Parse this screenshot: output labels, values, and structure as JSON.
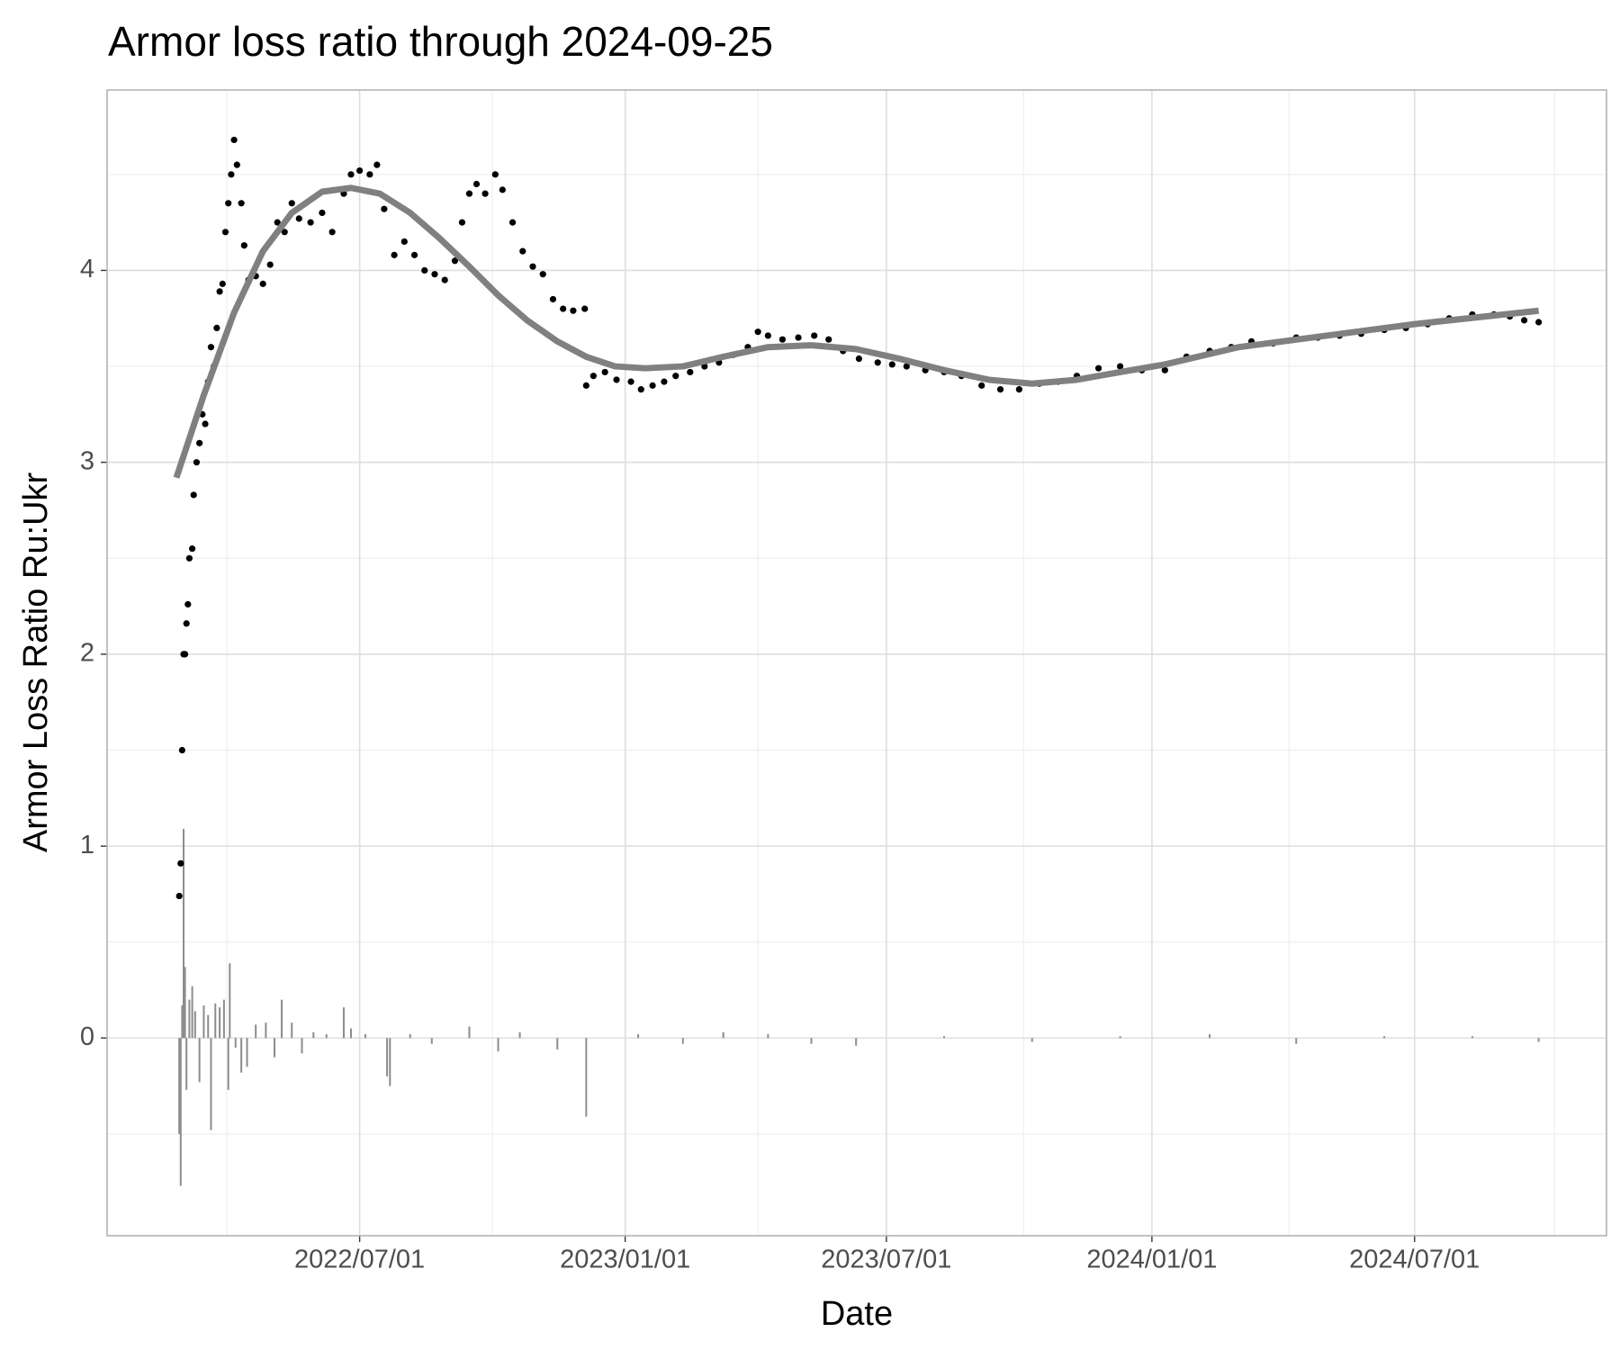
{
  "chart_data": {
    "type": "scatter",
    "title": "Armor loss ratio through 2024-09-25",
    "x_label": "Date",
    "y_label": "Armor Loss Ratio Ru:Ukr",
    "xlim": [
      "2022-01-07",
      "2024-11-11"
    ],
    "ylim": [
      -1.03,
      4.94
    ],
    "xticks": [
      {
        "value": "2022-07-01",
        "label": "2022/07/01"
      },
      {
        "value": "2023-01-01",
        "label": "2023/01/01"
      },
      {
        "value": "2023-07-01",
        "label": "2023/07/01"
      },
      {
        "value": "2024-01-01",
        "label": "2024/01/01"
      },
      {
        "value": "2024-07-01",
        "label": "2024/07/01"
      }
    ],
    "yticks": [
      0,
      1,
      2,
      3,
      4
    ],
    "grid": true,
    "series": [
      {
        "type": "bar",
        "color": "#8c8c8c",
        "x": [
          "2022-02-26",
          "2022-02-27",
          "2022-02-28",
          "2022-03-01",
          "2022-03-02",
          "2022-03-03",
          "2022-03-05",
          "2022-03-07",
          "2022-03-09",
          "2022-03-12",
          "2022-03-15",
          "2022-03-18",
          "2022-03-20",
          "2022-03-23",
          "2022-03-26",
          "2022-03-29",
          "2022-04-01",
          "2022-04-02",
          "2022-04-06",
          "2022-04-10",
          "2022-04-14",
          "2022-04-20",
          "2022-04-27",
          "2022-05-03",
          "2022-05-08",
          "2022-05-15",
          "2022-05-22",
          "2022-05-30",
          "2022-06-08",
          "2022-06-20",
          "2022-06-25",
          "2022-07-05",
          "2022-07-20",
          "2022-07-22",
          "2022-08-05",
          "2022-08-20",
          "2022-09-15",
          "2022-10-05",
          "2022-10-20",
          "2022-11-15",
          "2022-12-05",
          "2023-01-10",
          "2023-02-10",
          "2023-03-10",
          "2023-04-10",
          "2023-05-10",
          "2023-06-10",
          "2023-08-10",
          "2023-10-10",
          "2023-12-10",
          "2024-02-10",
          "2024-04-10",
          "2024-06-10",
          "2024-08-10",
          "2024-09-25"
        ],
        "values": [
          -0.5,
          -0.77,
          0.17,
          1.09,
          0.37,
          -0.27,
          0.2,
          0.27,
          0.14,
          -0.23,
          0.17,
          0.12,
          -0.48,
          0.18,
          0.16,
          0.2,
          -0.27,
          0.39,
          -0.05,
          -0.18,
          -0.15,
          0.07,
          0.08,
          -0.1,
          0.2,
          0.08,
          -0.08,
          0.03,
          0.02,
          0.16,
          0.05,
          0.02,
          -0.2,
          -0.25,
          0.02,
          -0.03,
          0.06,
          -0.07,
          0.03,
          -0.06,
          -0.41,
          0.02,
          -0.03,
          0.03,
          0.02,
          -0.03,
          -0.04,
          0.01,
          -0.02,
          0.01,
          0.02,
          -0.03,
          0.01,
          0.01,
          -0.02
        ]
      },
      {
        "type": "scatter",
        "color": "#000000",
        "x": [
          "2022-02-26",
          "2022-02-27",
          "2022-02-28",
          "2022-03-01",
          "2022-03-02",
          "2022-03-03",
          "2022-03-04",
          "2022-03-05",
          "2022-03-07",
          "2022-03-08",
          "2022-03-10",
          "2022-03-12",
          "2022-03-14",
          "2022-03-16",
          "2022-03-18",
          "2022-03-20",
          "2022-03-22",
          "2022-03-24",
          "2022-03-26",
          "2022-03-28",
          "2022-03-30",
          "2022-04-01",
          "2022-04-03",
          "2022-04-05",
          "2022-04-07",
          "2022-04-10",
          "2022-04-12",
          "2022-04-15",
          "2022-04-20",
          "2022-04-25",
          "2022-04-30",
          "2022-05-05",
          "2022-05-10",
          "2022-05-15",
          "2022-05-20",
          "2022-05-28",
          "2022-06-05",
          "2022-06-12",
          "2022-06-20",
          "2022-06-25",
          "2022-07-01",
          "2022-07-08",
          "2022-07-13",
          "2022-07-18",
          "2022-07-25",
          "2022-08-01",
          "2022-08-08",
          "2022-08-15",
          "2022-08-22",
          "2022-08-29",
          "2022-09-05",
          "2022-09-10",
          "2022-09-15",
          "2022-09-20",
          "2022-09-26",
          "2022-10-03",
          "2022-10-08",
          "2022-10-15",
          "2022-10-22",
          "2022-10-29",
          "2022-11-05",
          "2022-11-12",
          "2022-11-19",
          "2022-11-26",
          "2022-12-04",
          "2022-12-05",
          "2022-12-10",
          "2022-12-18",
          "2022-12-26",
          "2023-01-05",
          "2023-01-12",
          "2023-01-20",
          "2023-01-28",
          "2023-02-05",
          "2023-02-15",
          "2023-02-25",
          "2023-03-07",
          "2023-03-17",
          "2023-03-27",
          "2023-04-03",
          "2023-04-10",
          "2023-04-20",
          "2023-05-01",
          "2023-05-12",
          "2023-05-22",
          "2023-06-01",
          "2023-06-12",
          "2023-06-25",
          "2023-07-05",
          "2023-07-15",
          "2023-07-28",
          "2023-08-10",
          "2023-08-22",
          "2023-09-05",
          "2023-09-18",
          "2023-10-01",
          "2023-10-15",
          "2023-10-28",
          "2023-11-10",
          "2023-11-25",
          "2023-12-10",
          "2023-12-25",
          "2024-01-10",
          "2024-01-25",
          "2024-02-10",
          "2024-02-25",
          "2024-03-10",
          "2024-03-25",
          "2024-04-10",
          "2024-04-25",
          "2024-05-10",
          "2024-05-25",
          "2024-06-10",
          "2024-06-25",
          "2024-07-10",
          "2024-07-25",
          "2024-08-10",
          "2024-08-25",
          "2024-09-05",
          "2024-09-15",
          "2024-09-25"
        ],
        "values": [
          0.74,
          0.91,
          1.5,
          2.0,
          2.0,
          2.16,
          2.26,
          2.5,
          2.55,
          2.83,
          3.0,
          3.1,
          3.25,
          3.2,
          3.42,
          3.6,
          3.5,
          3.7,
          3.89,
          3.93,
          4.2,
          4.35,
          4.5,
          4.68,
          4.55,
          4.35,
          4.13,
          3.95,
          3.97,
          3.93,
          4.03,
          4.25,
          4.2,
          4.35,
          4.27,
          4.25,
          4.3,
          4.2,
          4.4,
          4.5,
          4.52,
          4.5,
          4.55,
          4.32,
          4.08,
          4.15,
          4.08,
          4.0,
          3.98,
          3.95,
          4.05,
          4.25,
          4.4,
          4.45,
          4.4,
          4.5,
          4.42,
          4.25,
          4.1,
          4.02,
          3.98,
          3.85,
          3.8,
          3.79,
          3.8,
          3.4,
          3.45,
          3.47,
          3.43,
          3.42,
          3.38,
          3.4,
          3.42,
          3.45,
          3.47,
          3.5,
          3.52,
          3.56,
          3.6,
          3.68,
          3.66,
          3.64,
          3.65,
          3.66,
          3.64,
          3.58,
          3.54,
          3.52,
          3.51,
          3.5,
          3.48,
          3.47,
          3.45,
          3.4,
          3.38,
          3.38,
          3.41,
          3.42,
          3.45,
          3.49,
          3.5,
          3.48,
          3.48,
          3.55,
          3.58,
          3.6,
          3.63,
          3.62,
          3.65,
          3.65,
          3.66,
          3.67,
          3.69,
          3.7,
          3.72,
          3.75,
          3.77,
          3.77,
          3.76,
          3.74,
          3.73
        ]
      },
      {
        "type": "line",
        "color": "#808080",
        "x": [
          "2022-02-24",
          "2022-03-15",
          "2022-04-05",
          "2022-04-25",
          "2022-05-15",
          "2022-06-05",
          "2022-06-25",
          "2022-07-15",
          "2022-08-05",
          "2022-08-25",
          "2022-09-15",
          "2022-10-05",
          "2022-10-25",
          "2022-11-15",
          "2022-12-05",
          "2022-12-25",
          "2023-01-15",
          "2023-02-10",
          "2023-03-10",
          "2023-04-10",
          "2023-05-10",
          "2023-06-10",
          "2023-07-10",
          "2023-08-10",
          "2023-09-10",
          "2023-10-10",
          "2023-11-10",
          "2023-12-10",
          "2024-01-10",
          "2024-03-01",
          "2024-05-01",
          "2024-07-01",
          "2024-09-25"
        ],
        "values": [
          2.92,
          3.35,
          3.78,
          4.1,
          4.3,
          4.41,
          4.43,
          4.4,
          4.3,
          4.17,
          4.02,
          3.87,
          3.74,
          3.63,
          3.55,
          3.5,
          3.49,
          3.5,
          3.55,
          3.6,
          3.61,
          3.59,
          3.54,
          3.48,
          3.43,
          3.41,
          3.43,
          3.47,
          3.51,
          3.6,
          3.66,
          3.72,
          3.79
        ]
      }
    ]
  }
}
